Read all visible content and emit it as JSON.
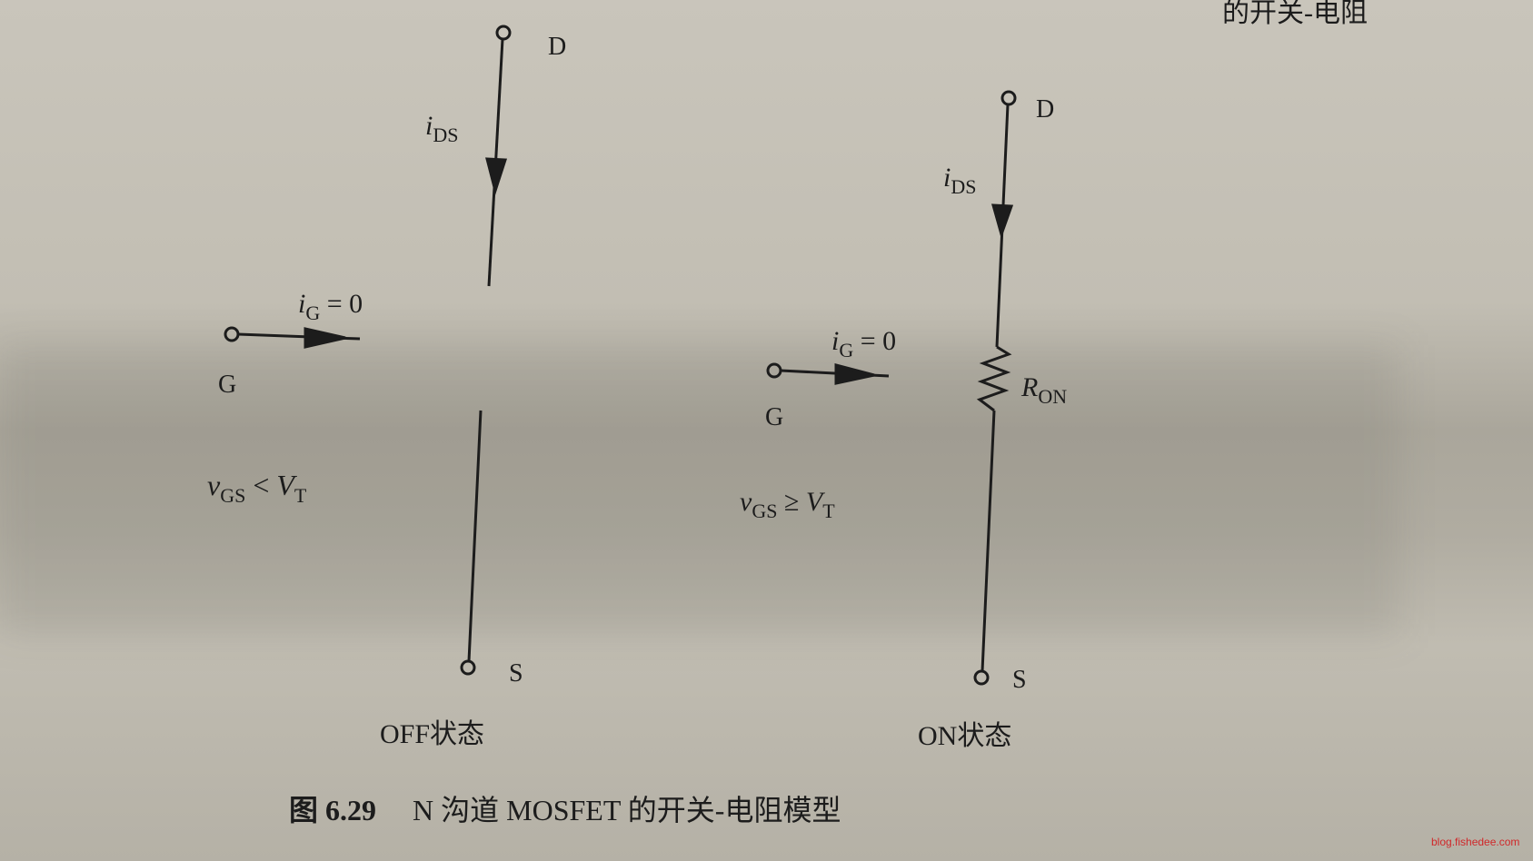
{
  "top_partial_heading": "的开关-电阻",
  "off_model": {
    "drain_label": "D",
    "source_label": "S",
    "gate_label": "G",
    "drain_current_label": {
      "main": "i",
      "sub": "DS"
    },
    "gate_current_label": {
      "main": "i",
      "sub": "G",
      "rest": " = 0"
    },
    "condition": {
      "v": "v",
      "vsub": "GS",
      "op": " < ",
      "V": "V",
      "Vsub": "T"
    },
    "state_label": "OFF状态"
  },
  "on_model": {
    "drain_label": "D",
    "source_label": "S",
    "gate_label": "G",
    "drain_current_label": {
      "main": "i",
      "sub": "DS"
    },
    "resistor_label": {
      "main": "R",
      "sub": "ON"
    },
    "gate_current_label": {
      "main": "i",
      "sub": "G",
      "rest": " = 0"
    },
    "condition": {
      "v": "v",
      "vsub": "GS",
      "op": " ≥ ",
      "V": "V",
      "Vsub": "T"
    },
    "state_label": "ON状态"
  },
  "caption": {
    "number": "图 6.29",
    "text": "N 沟道 MOSFET 的开关-电阻模型"
  },
  "watermark": "blog.fishedee.com",
  "colors": {
    "ink": "#1c1c1c",
    "watermark": "#d0282a"
  }
}
